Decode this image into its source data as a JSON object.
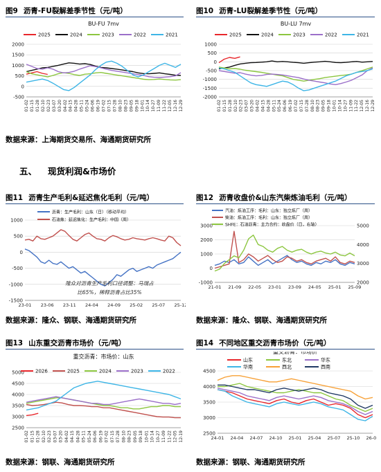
{
  "section": {
    "number": "五、",
    "title": "现货利润&市场价"
  },
  "figures": [
    {
      "number": "图9",
      "title": "沥青-FU裂解差季节性（元/吨）",
      "source": "数据来源：上海期货交易所、海通期货研究所"
    },
    {
      "number": "图10",
      "title": "沥青-LU裂解差季节性（元/吨）",
      "source": "数据来源：上海期货交易所、海通期货研究所"
    },
    {
      "number": "图11",
      "title": "沥青生产毛利&延迟焦化毛利（元/吨）",
      "source": "数据来源：隆众、钢联、海通期货研究所"
    },
    {
      "number": "图12",
      "title": "沥青收盘价&山东汽柴炼油毛利（元/吨）",
      "source": "数据来源：隆众、钢联、海通期货研究所"
    },
    {
      "number": "图13",
      "title": "山东重交沥青市场价（元/吨）",
      "source": "数据来源：钢联、海通期货研究所"
    },
    {
      "number": "图14",
      "title": "不同地区重交沥青市场价（元/吨）",
      "source": "数据来源：钢联、海通期货研究所"
    }
  ],
  "colors": {
    "red": "#e8262b",
    "black": "#111111",
    "green": "#8cc63f",
    "purple": "#9b6fc9",
    "cyan": "#3db5e6",
    "blue": "#4472c4",
    "darkred": "#c0504d",
    "orange": "#f7a035",
    "navy": "#1f3864",
    "grid": "#d0d0d0",
    "rule": "#2a4f86"
  },
  "chart_data": [
    {
      "id": "fig9",
      "type": "line",
      "title": "BU-FU 7mv",
      "x_ticks": [
        "01-02",
        "01-15",
        "01-28",
        "02-10",
        "02-23",
        "03-07",
        "03-20",
        "04-02",
        "04-15",
        "04-28",
        "05-11",
        "05-24",
        "06-06",
        "06-19",
        "07-02",
        "07-15",
        "07-28",
        "08-10",
        "08-23",
        "09-05",
        "09-18",
        "10-01",
        "10-14",
        "10-27",
        "11-09",
        "11-22",
        "12-05",
        "12-16",
        "12-29"
      ],
      "yticks": [
        -500,
        0,
        500,
        1000,
        1500,
        2000
      ],
      "ylim": [
        -500,
        2000
      ],
      "series": [
        {
          "name": "2025",
          "color": "#e8262b",
          "values": [
            580,
            640,
            700,
            620,
            570
          ]
        },
        {
          "name": "2024",
          "color": "#111111",
          "values": [
            700,
            760,
            820,
            880,
            900,
            950,
            1000,
            1060,
            1120,
            1100,
            1060,
            1080,
            1040,
            960,
            900,
            880,
            850,
            820,
            780,
            740,
            700,
            640,
            610,
            600,
            620,
            640,
            600,
            570,
            530,
            520
          ]
        },
        {
          "name": "2023",
          "color": "#8cc63f",
          "values": [
            700,
            600,
            550,
            500,
            450,
            520,
            600,
            650,
            620,
            560,
            520,
            580,
            600,
            640,
            660,
            620,
            580,
            540,
            500,
            460,
            420,
            380,
            340,
            320,
            330,
            350,
            330,
            310,
            300,
            320
          ]
        },
        {
          "name": "2022",
          "color": "#9b6fc9",
          "values": [
            1050,
            950,
            850,
            820,
            880,
            820,
            700,
            640,
            660,
            720,
            820,
            900,
            980,
            940,
            880,
            820,
            760,
            720,
            680,
            640,
            600,
            560,
            520,
            460,
            430,
            420,
            440,
            460,
            500,
            650
          ]
        },
        {
          "name": "2021",
          "color": "#3db5e6",
          "values": [
            200,
            250,
            300,
            350,
            280,
            150,
            0,
            -150,
            -200,
            -50,
            150,
            350,
            550,
            800,
            1000,
            1150,
            1200,
            1100,
            950,
            750,
            550,
            450,
            550,
            700,
            850,
            1000,
            1100,
            1000,
            900,
            1050
          ]
        }
      ]
    },
    {
      "id": "fig10",
      "type": "line",
      "title": "BU-LU 7mv",
      "x_ticks": [
        "01-02",
        "01-15",
        "01-28",
        "02-10",
        "02-23",
        "03-07",
        "03-20",
        "04-02",
        "04-15",
        "04-28",
        "05-11",
        "05-24",
        "06-06",
        "06-19",
        "07-02",
        "07-15",
        "07-28",
        "08-10",
        "08-23",
        "09-05",
        "09-18",
        "10-01",
        "10-14",
        "10-27",
        "11-09",
        "11-22",
        "12-05",
        "12-16",
        "12-29"
      ],
      "yticks": [
        -2000,
        -1500,
        -1000,
        -500,
        0,
        500,
        1000
      ],
      "ylim": [
        -2000,
        1000
      ],
      "series": [
        {
          "name": "2025",
          "color": "#e8262b",
          "values": [
            -50,
            150,
            250,
            200,
            280
          ]
        },
        {
          "name": "2024",
          "color": "#111111",
          "values": [
            -400,
            -350,
            -300,
            -200,
            -120,
            -80,
            -50,
            -40,
            -20,
            0,
            50,
            0,
            20,
            0,
            -30,
            -50,
            -80,
            -50,
            -20,
            0,
            30,
            0,
            -40,
            -50,
            -30,
            0,
            20,
            -20,
            0,
            20
          ]
        },
        {
          "name": "2023",
          "color": "#8cc63f",
          "values": [
            -300,
            -350,
            -400,
            -380,
            -420,
            -480,
            -520,
            -560,
            -600,
            -650,
            -700,
            -760,
            -800,
            -900,
            -1000,
            -1050,
            -1100,
            -1050,
            -1000,
            -960,
            -900,
            -860,
            -820,
            -780,
            -750,
            -700,
            -600,
            -500,
            -400,
            -300
          ]
        },
        {
          "name": "2022",
          "color": "#9b6fc9",
          "values": [
            -500,
            -550,
            -600,
            -650,
            -620,
            -700,
            -760,
            -800,
            -780,
            -720,
            -700,
            -720,
            -750,
            -800,
            -850,
            -900,
            -980,
            -1050,
            -1100,
            -1150,
            -1200,
            -1260,
            -1300,
            -1240,
            -1150,
            -1050,
            -900,
            -750,
            -500,
            -350
          ]
        },
        {
          "name": "2021",
          "color": "#3db5e6",
          "values": [
            -350,
            -400,
            -500,
            -600,
            -800,
            -1000,
            -1200,
            -1300,
            -1350,
            -1400,
            -1300,
            -1200,
            -1100,
            -1150,
            -1300,
            -1500,
            -1650,
            -1600,
            -1500,
            -1400,
            -1300,
            -1200,
            -1100,
            -950,
            -800,
            -700,
            -600,
            -550,
            -500,
            -400
          ]
        }
      ]
    },
    {
      "id": "fig11",
      "type": "line",
      "x_ticks": [
        "23-01",
        "23-06",
        "23-11",
        "24-04",
        "24-09",
        "25-02",
        "25-07",
        "25-12"
      ],
      "yticks": [
        -1500,
        -1000,
        -500,
        0,
        500,
        1000
      ],
      "ylim": [
        -1500,
        1000
      ],
      "annotation_lines": [
        "隆众对沥青生产毛利口径调整：马瑞占",
        "比65%，稀释沥青占比35%"
      ],
      "series": [
        {
          "name": "沥青：生产毛利：山东（日）（移动平均）",
          "color": "#4472c4",
          "values": [
            100,
            50,
            -50,
            -150,
            -300,
            -350,
            -250,
            -350,
            -380,
            -300,
            -400,
            -500,
            -450,
            -550,
            -650,
            -600,
            -700,
            -800,
            -900,
            -1000,
            -1050,
            -950,
            -850,
            -700,
            -750,
            -650,
            -550,
            -500,
            -600,
            -550,
            -500,
            -450,
            -500,
            -400,
            -350,
            -300,
            -250,
            -200,
            -100,
            0
          ]
        },
        {
          "name": "石油焦：延迟焦化：生产毛利：中国（周）",
          "color": "#c0504d",
          "values": [
            380,
            400,
            350,
            500,
            420,
            400,
            450,
            500,
            600,
            700,
            650,
            520,
            400,
            350,
            450,
            550,
            600,
            500,
            420,
            400,
            350,
            450,
            520,
            480,
            420,
            380,
            400,
            450,
            420,
            400,
            380,
            420,
            450,
            420,
            380,
            350,
            500,
            450,
            300,
            200
          ]
        }
      ]
    },
    {
      "id": "fig12",
      "type": "line",
      "x_ticks": [
        "21-01",
        "21-09",
        "22-05",
        "23-01",
        "23-09",
        "24-05",
        "25-01",
        "25-09"
      ],
      "yticks_left": [
        -1000,
        0,
        1000,
        2000,
        3000
      ],
      "ylim_left": [
        -1000,
        3000
      ],
      "yticks_right": [
        2000,
        3000,
        4000,
        5000
      ],
      "ylim_right": [
        2000,
        5000
      ],
      "series": [
        {
          "name": "汽油：炼油工序：毛利：山东：独立炼厂（周）",
          "color": "#4472c4",
          "axis": "left",
          "values": [
            200,
            300,
            500,
            400,
            600,
            300,
            400,
            800,
            500,
            200,
            400,
            600,
            300,
            500,
            700,
            900,
            600,
            400,
            500,
            300,
            200,
            400,
            300,
            500,
            400,
            600,
            300,
            200,
            400,
            300
          ]
        },
        {
          "name": "柴油：炼油工序：毛利：山东：独立炼厂（周）",
          "color": "#c0504d",
          "axis": "left",
          "values": [
            0,
            100,
            200,
            300,
            2600,
            400,
            600,
            1000,
            800,
            500,
            700,
            900,
            600,
            400,
            500,
            800,
            700,
            500,
            600,
            400,
            300,
            500,
            600,
            700,
            500,
            800,
            400,
            300,
            500,
            400
          ]
        },
        {
          "name": "SHFE：石油沥青：主力合约：收盘价（日，右轴）",
          "color": "#8cc63f",
          "axis": "right",
          "values": [
            2600,
            2700,
            3000,
            3200,
            3400,
            3300,
            3700,
            4300,
            4500,
            4000,
            3900,
            3700,
            3600,
            3800,
            3900,
            3700,
            3600,
            3700,
            3750,
            3600,
            3500,
            3600,
            3650,
            3550,
            3500,
            3600,
            3450,
            3400,
            3550,
            3400
          ]
        }
      ]
    },
    {
      "id": "fig13",
      "type": "line",
      "title": "重交沥青：市场价：山东",
      "x_ticks": [
        "01-02",
        "01-15",
        "01-28",
        "02-10",
        "02-23",
        "03-07",
        "03-20",
        "04-02",
        "04-15",
        "04-28",
        "05-11",
        "05-24",
        "06-06",
        "06-19",
        "07-02",
        "07-15",
        "07-28",
        "08-10",
        "08-23",
        "09-05",
        "09-18",
        "10-01",
        "10-14",
        "10-27",
        "11-09",
        "11-22",
        "12-05",
        "12-19"
      ],
      "yticks": [
        2500,
        3000,
        3500,
        4000,
        4500,
        5000
      ],
      "ylim": [
        2500,
        5000
      ],
      "series": [
        {
          "name": "2026",
          "color": "#e8262b",
          "values": [
            3050,
            3080,
            3150
          ]
        },
        {
          "name": "2025",
          "color": "#c0504d",
          "values": [
            3550,
            3500,
            3520,
            3550,
            3600,
            3650,
            3620,
            3550,
            3500,
            3500,
            3480,
            3450,
            3450,
            3400,
            3400,
            3350,
            3300,
            3250,
            3200,
            3150,
            3100,
            3050,
            3000,
            2980,
            2980,
            2950,
            2950
          ]
        },
        {
          "name": "2024",
          "color": "#8cc63f",
          "values": [
            3600,
            3650,
            3700,
            3750,
            3800,
            3850,
            3850,
            3800,
            3750,
            3700,
            3650,
            3600,
            3550,
            3500,
            3500,
            3450,
            3400,
            3400,
            3350,
            3350,
            3400,
            3450,
            3450,
            3500,
            3500,
            3450,
            3450
          ]
        },
        {
          "name": "2023",
          "color": "#9b6fc9",
          "values": [
            3650,
            3700,
            3750,
            3800,
            3850,
            3900,
            3850,
            3800,
            3750,
            3700,
            3650,
            3600,
            3600,
            3550,
            3550,
            3600,
            3650,
            3700,
            3750,
            3800,
            3750,
            3700,
            3650,
            3600,
            3600,
            3550,
            3600
          ]
        },
        {
          "name": "2022",
          "color": "#3db5e6",
          "values": [
            3300,
            3350,
            3400,
            3500,
            3600,
            3700,
            3900,
            4100,
            4300,
            4400,
            4500,
            4550,
            4600,
            4550,
            4500,
            4450,
            4400,
            4350,
            4300,
            4250,
            4200,
            4150,
            4100,
            4050,
            4000,
            3900,
            3800
          ]
        }
      ]
    },
    {
      "id": "fig14",
      "type": "line",
      "title": "重交沥青：市场价",
      "x_ticks": [
        "24-01",
        "24-04",
        "24-07",
        "24-10",
        "25-01",
        "25-04",
        "25-07",
        "25-10",
        "26-01"
      ],
      "yticks": [
        2500,
        3000,
        3500,
        4000,
        4500
      ],
      "ylim": [
        2500,
        4500
      ],
      "series": [
        {
          "name": "山东",
          "color": "#e8262b",
          "values": [
            3900,
            3850,
            3800,
            3700,
            3600,
            3550,
            3500,
            3450,
            3550,
            3600,
            3500,
            3450,
            3550,
            3600,
            3500,
            3400,
            3450,
            3400,
            3300,
            3100,
            3000,
            3100
          ]
        },
        {
          "name": "东北",
          "color": "#8cc63f",
          "values": [
            4000,
            4000,
            4050,
            4100,
            4000,
            3950,
            3900,
            3850,
            3800,
            3800,
            3850,
            3900,
            3850,
            3800,
            3800,
            3700,
            3600,
            3550,
            3400,
            3300,
            3200,
            3300
          ]
        },
        {
          "name": "华东",
          "color": "#9b6fc9",
          "values": [
            3950,
            3900,
            3850,
            3800,
            3700,
            3650,
            3600,
            3550,
            3650,
            3700,
            3650,
            3600,
            3650,
            3700,
            3650,
            3550,
            3500,
            3450,
            3350,
            3200,
            3100,
            3200
          ]
        },
        {
          "name": "华南",
          "color": "#3db5e6",
          "values": [
            3900,
            3850,
            3700,
            3600,
            3500,
            3450,
            3400,
            3350,
            3450,
            3500,
            3450,
            3400,
            3450,
            3500,
            3450,
            3350,
            3300,
            3250,
            3100,
            2950,
            2900,
            3050
          ]
        },
        {
          "name": "西北",
          "color": "#f7a035",
          "values": [
            4200,
            4300,
            4350,
            4350,
            4300,
            4250,
            4200,
            4150,
            4150,
            4200,
            4250,
            4200,
            4150,
            4100,
            4050,
            4000,
            3950,
            3900,
            3850,
            3700,
            3600,
            3650
          ]
        },
        {
          "name": "西南",
          "color": "#1f3864",
          "values": [
            4050,
            4050,
            4000,
            3950,
            3900,
            3900,
            3850,
            3800,
            3900,
            3950,
            3900,
            3850,
            3900,
            3950,
            3900,
            3800,
            3750,
            3700,
            3600,
            3400,
            3300,
            3400
          ]
        }
      ]
    }
  ]
}
